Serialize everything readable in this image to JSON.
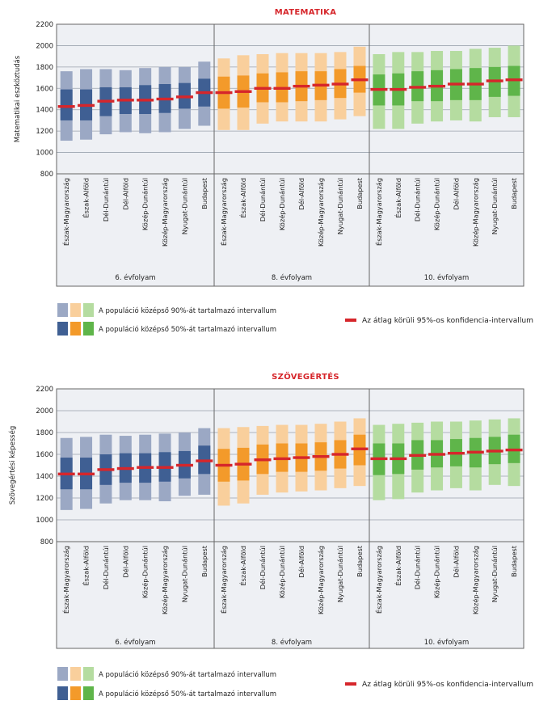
{
  "colors": {
    "title": "#d6262b",
    "mean": "#d6262b",
    "panel_bg": "#eef0f4",
    "grid": "#9aa2ad",
    "frame": "#666666",
    "groups": [
      {
        "light": "#9ba8c4",
        "dark": "#3f5f93"
      },
      {
        "light": "#f9cf9c",
        "dark": "#f39a2a"
      },
      {
        "light": "#b5dca0",
        "dark": "#5fb54a"
      }
    ]
  },
  "legend": {
    "item_90": "A populáció középső 90%-át tartalmazó intervallum",
    "item_50": "A populáció középső 50%-át tartalmazó intervallum",
    "item_mean": "Az átlag körüli 95%-os konfidencia-intervallum"
  },
  "chart_data": [
    {
      "type": "box-interval",
      "title": "MATEMATIKA",
      "ylabel": "Matematikai eszköztudás",
      "ylim": [
        800,
        2200
      ],
      "yticks": [
        800,
        1000,
        1200,
        1400,
        1600,
        1800,
        2000,
        2200
      ],
      "groups": [
        {
          "name": "6. évfolyam",
          "categories": [
            "Észak-Magyarország",
            "Észak-Alföld",
            "Dél-Dunántúl",
            "Dél-Alföld",
            "Közép-Dunántúl",
            "Közép-Magyarország",
            "Nyugat-Dunántúl",
            "Budapest"
          ],
          "p5": [
            1110,
            1120,
            1170,
            1190,
            1180,
            1190,
            1220,
            1250
          ],
          "p25": [
            1300,
            1300,
            1340,
            1360,
            1360,
            1370,
            1410,
            1430
          ],
          "mean": [
            1430,
            1440,
            1480,
            1490,
            1490,
            1500,
            1520,
            1560
          ],
          "p75": [
            1590,
            1590,
            1610,
            1610,
            1630,
            1640,
            1650,
            1690
          ],
          "p95": [
            1760,
            1780,
            1780,
            1770,
            1790,
            1800,
            1800,
            1850
          ]
        },
        {
          "name": "8. évfolyam",
          "categories": [
            "Észak-Magyarország",
            "Észak-Alföld",
            "Dél-Dunántúl",
            "Közép-Dunántúl",
            "Dél-Alföld",
            "Közép-Magyarország",
            "Nyugat-Dunántúl",
            "Budapest"
          ],
          "p5": [
            1210,
            1210,
            1270,
            1290,
            1290,
            1290,
            1310,
            1340
          ],
          "p25": [
            1410,
            1420,
            1470,
            1470,
            1480,
            1490,
            1510,
            1560
          ],
          "mean": [
            1560,
            1570,
            1600,
            1600,
            1620,
            1630,
            1640,
            1680
          ],
          "p75": [
            1710,
            1720,
            1740,
            1750,
            1760,
            1760,
            1780,
            1810
          ],
          "p95": [
            1880,
            1910,
            1920,
            1930,
            1930,
            1930,
            1940,
            1990
          ]
        },
        {
          "name": "10. évfolyam",
          "categories": [
            "Észak-Magyarország",
            "Észak-Alföld",
            "Dél-Dunántúl",
            "Közép-Dunántúl",
            "Dél-Alföld",
            "Közép-Magyarország",
            "Nyugat-Dunántúl",
            "Budapest"
          ],
          "p5": [
            1220,
            1220,
            1270,
            1290,
            1300,
            1290,
            1330,
            1330
          ],
          "p25": [
            1440,
            1440,
            1480,
            1480,
            1490,
            1490,
            1520,
            1530
          ],
          "mean": [
            1590,
            1590,
            1610,
            1620,
            1640,
            1640,
            1670,
            1680
          ],
          "p75": [
            1730,
            1740,
            1760,
            1770,
            1780,
            1790,
            1800,
            1810
          ],
          "p95": [
            1920,
            1940,
            1940,
            1950,
            1950,
            1970,
            1980,
            2000
          ]
        }
      ]
    },
    {
      "type": "box-interval",
      "title": "SZÖVEGÉRTÉS",
      "ylabel": "Szövegértési képesség",
      "ylim": [
        800,
        2200
      ],
      "yticks": [
        800,
        1000,
        1200,
        1400,
        1600,
        1800,
        2000,
        2200
      ],
      "groups": [
        {
          "name": "6. évfolyam",
          "categories": [
            "Észak-Magyarország",
            "Észak-Alföld",
            "Dél-Dunántúl",
            "Dél-Alföld",
            "Közép-Dunántúl",
            "Közép-Magyarország",
            "Nyugat-Dunántúl",
            "Budapest"
          ],
          "p5": [
            1090,
            1100,
            1150,
            1180,
            1180,
            1170,
            1220,
            1230
          ],
          "p25": [
            1280,
            1280,
            1320,
            1340,
            1340,
            1350,
            1380,
            1420
          ],
          "mean": [
            1420,
            1420,
            1460,
            1470,
            1480,
            1480,
            1500,
            1540
          ],
          "p75": [
            1570,
            1570,
            1600,
            1610,
            1610,
            1620,
            1630,
            1680
          ],
          "p95": [
            1750,
            1760,
            1780,
            1770,
            1780,
            1790,
            1800,
            1840
          ]
        },
        {
          "name": "8. évfolyam",
          "categories": [
            "Észak-Magyarország",
            "Észak-Alföld",
            "Dél-Dunántúl",
            "Közép-Dunántúl",
            "Dél-Alföld",
            "Közép-Magyarország",
            "Nyugat-Dunántúl",
            "Budapest"
          ],
          "p5": [
            1130,
            1150,
            1230,
            1250,
            1260,
            1270,
            1290,
            1310
          ],
          "p25": [
            1350,
            1360,
            1420,
            1440,
            1440,
            1450,
            1470,
            1500
          ],
          "mean": [
            1500,
            1510,
            1550,
            1560,
            1570,
            1580,
            1600,
            1650
          ],
          "p75": [
            1650,
            1660,
            1690,
            1700,
            1700,
            1710,
            1730,
            1780
          ],
          "p95": [
            1840,
            1850,
            1860,
            1870,
            1870,
            1880,
            1900,
            1930
          ]
        },
        {
          "name": "10. évfolyam",
          "categories": [
            "Észak-Magyarország",
            "Észak-Alföld",
            "Dél-Dunántúl",
            "Közép-Dunántúl",
            "Dél-Alföld",
            "Közép-Magyarország",
            "Nyugat-Dunántúl",
            "Budapest"
          ],
          "p5": [
            1180,
            1190,
            1250,
            1270,
            1290,
            1270,
            1320,
            1310
          ],
          "p25": [
            1410,
            1420,
            1460,
            1480,
            1490,
            1480,
            1510,
            1520
          ],
          "mean": [
            1560,
            1560,
            1590,
            1600,
            1610,
            1620,
            1630,
            1640
          ],
          "p75": [
            1700,
            1700,
            1730,
            1730,
            1740,
            1750,
            1760,
            1780
          ],
          "p95": [
            1870,
            1880,
            1890,
            1900,
            1900,
            1910,
            1920,
            1930
          ]
        }
      ]
    }
  ]
}
